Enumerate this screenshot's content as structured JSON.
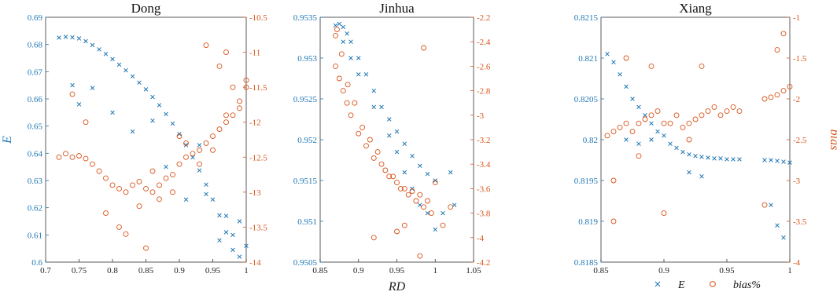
{
  "colors": {
    "E": "#1f77b4",
    "bias": "#d9541a"
  },
  "legend": {
    "placement": "bottom-right",
    "entries": [
      {
        "marker": "x",
        "label": "E",
        "color": "#1f77b4"
      },
      {
        "marker": "o",
        "label": "bias%",
        "color": "#d9541a"
      }
    ]
  },
  "chart_data": [
    {
      "type": "scatter",
      "title": "Dong",
      "xlabel": "",
      "ylabel": "E",
      "y2label": "",
      "xlim": [
        0.7,
        1.0
      ],
      "ylim": [
        0.6,
        0.69
      ],
      "y2lim": [
        -14,
        -10.5
      ],
      "xticks": [
        "0.7",
        "0.75",
        "0.8",
        "0.85",
        "0.9",
        "0.95",
        "1"
      ],
      "yticks": [
        "0.6",
        "0.61",
        "0.62",
        "0.63",
        "0.64",
        "0.65",
        "0.66",
        "0.67",
        "0.68",
        "0.69"
      ],
      "y2ticks": [
        "-14",
        "-13.5",
        "-13",
        "-12.5",
        "-12",
        "-11.5",
        "-11",
        "-10.5"
      ],
      "series": [
        {
          "name": "E",
          "marker": "x",
          "axis": "left",
          "x": [
            0.72,
            0.73,
            0.74,
            0.75,
            0.76,
            0.77,
            0.78,
            0.79,
            0.8,
            0.81,
            0.82,
            0.83,
            0.84,
            0.85,
            0.86,
            0.87,
            0.88,
            0.89,
            0.9,
            0.91,
            0.92,
            0.93,
            0.94,
            0.95,
            0.96,
            0.97,
            0.98,
            0.99,
            1.0,
            0.74,
            0.75,
            0.77,
            0.8,
            0.83,
            0.86,
            0.88,
            0.91,
            0.93,
            0.94,
            0.96,
            0.97,
            0.98,
            0.99
          ],
          "y": [
            0.6825,
            0.6828,
            0.6826,
            0.6822,
            0.6812,
            0.6798,
            0.6782,
            0.6765,
            0.6746,
            0.6726,
            0.6705,
            0.6683,
            0.666,
            0.6635,
            0.6607,
            0.6577,
            0.6544,
            0.6509,
            0.6471,
            0.643,
            0.6385,
            0.6337,
            0.6285,
            0.623,
            0.6172,
            0.611,
            0.6045,
            0.602,
            0.606,
            0.665,
            0.658,
            0.664,
            0.655,
            0.648,
            0.652,
            0.635,
            0.623,
            0.643,
            0.625,
            0.608,
            0.617,
            0.61,
            0.615
          ]
        },
        {
          "name": "bias%",
          "marker": "o",
          "axis": "right",
          "x": [
            0.72,
            0.73,
            0.74,
            0.75,
            0.76,
            0.77,
            0.78,
            0.79,
            0.8,
            0.81,
            0.82,
            0.83,
            0.84,
            0.85,
            0.86,
            0.87,
            0.88,
            0.89,
            0.9,
            0.91,
            0.92,
            0.93,
            0.94,
            0.95,
            0.96,
            0.97,
            0.98,
            0.99,
            1.0,
            0.74,
            0.76,
            0.79,
            0.81,
            0.84,
            0.85,
            0.87,
            0.89,
            0.91,
            0.93,
            0.95,
            0.96,
            0.97,
            0.98,
            0.99,
            1.0,
            0.82,
            0.86,
            0.9,
            0.94,
            0.97
          ],
          "y": [
            -12.5,
            -12.45,
            -12.5,
            -12.48,
            -12.52,
            -12.6,
            -12.7,
            -12.8,
            -12.9,
            -12.95,
            -13.0,
            -12.9,
            -12.85,
            -12.95,
            -13.0,
            -12.9,
            -12.8,
            -12.75,
            -12.6,
            -12.5,
            -12.45,
            -12.4,
            -12.3,
            -12.2,
            -12.1,
            -12.0,
            -11.9,
            -11.7,
            -11.5,
            -11.6,
            -12.0,
            -13.3,
            -13.5,
            -13.2,
            -13.8,
            -13.1,
            -13.0,
            -12.3,
            -12.6,
            -12.4,
            -11.2,
            -11.0,
            -11.5,
            -11.8,
            -11.4,
            -13.6,
            -12.7,
            -12.2,
            -10.9,
            -11.9
          ]
        }
      ]
    },
    {
      "type": "scatter",
      "title": "Jinhua",
      "xlabel": "RD",
      "ylabel": "",
      "y2label": "",
      "xlim": [
        0.85,
        1.05
      ],
      "ylim": [
        0.9505,
        0.9535
      ],
      "y2lim": [
        -4.2,
        -2.2
      ],
      "xticks": [
        "0.85",
        "0.9",
        "0.95",
        "1",
        "1.05"
      ],
      "yticks": [
        "0.9505",
        "0.951",
        "0.9515",
        "0.952",
        "0.9525",
        "0.953",
        "0.9535"
      ],
      "y2ticks": [
        "-4.2",
        "-4",
        "-3.8",
        "-3.6",
        "-3.4",
        "-3.2",
        "-3",
        "-2.8",
        "-2.6",
        "-2.4",
        "-2.2"
      ],
      "series": [
        {
          "name": "E",
          "marker": "x",
          "axis": "left",
          "x": [
            0.87,
            0.875,
            0.88,
            0.885,
            0.89,
            0.9,
            0.91,
            0.92,
            0.93,
            0.94,
            0.95,
            0.96,
            0.97,
            0.98,
            0.99,
            1.0,
            0.88,
            0.89,
            0.9,
            0.92,
            0.94,
            0.95,
            0.96,
            0.97,
            0.98,
            0.99,
            1.0,
            1.01,
            1.02,
            1.025
          ],
          "y": [
            0.9534,
            0.95342,
            0.95338,
            0.9533,
            0.9532,
            0.953,
            0.9528,
            0.9526,
            0.9524,
            0.95225,
            0.9521,
            0.95195,
            0.9518,
            0.95168,
            0.95158,
            0.9515,
            0.9532,
            0.953,
            0.9528,
            0.9524,
            0.95205,
            0.95185,
            0.9516,
            0.9514,
            0.9512,
            0.9511,
            0.9509,
            0.9511,
            0.9516,
            0.9512
          ]
        },
        {
          "name": "bias%",
          "marker": "o",
          "axis": "right",
          "x": [
            0.87,
            0.875,
            0.88,
            0.885,
            0.89,
            0.9,
            0.91,
            0.92,
            0.93,
            0.94,
            0.95,
            0.96,
            0.97,
            0.98,
            0.99,
            1.0,
            0.872,
            0.878,
            0.886,
            0.895,
            0.905,
            0.915,
            0.925,
            0.935,
            0.945,
            0.955,
            0.965,
            0.975,
            0.985,
            0.995,
            0.92,
            0.95,
            0.96,
            0.98,
            0.985,
            1.01,
            1.02,
            0.87
          ],
          "y": [
            -2.6,
            -2.7,
            -2.8,
            -2.9,
            -3.0,
            -3.15,
            -3.25,
            -3.35,
            -3.4,
            -3.5,
            -3.55,
            -3.6,
            -3.62,
            -3.65,
            -3.7,
            -3.55,
            -2.3,
            -2.5,
            -2.75,
            -2.9,
            -3.1,
            -3.2,
            -3.3,
            -3.45,
            -3.5,
            -3.6,
            -3.65,
            -3.7,
            -3.75,
            -3.8,
            -4.0,
            -3.95,
            -3.9,
            -4.15,
            -2.45,
            -3.9,
            -3.75,
            -2.35
          ]
        }
      ]
    },
    {
      "type": "scatter",
      "title": "Xiang",
      "xlabel": "",
      "ylabel": "",
      "y2label": "bias",
      "xlim": [
        0.85,
        1.0
      ],
      "ylim": [
        0.8185,
        0.8215
      ],
      "y2lim": [
        -4,
        -1
      ],
      "xticks": [
        "0.85",
        "0.9",
        "0.95",
        "1"
      ],
      "yticks": [
        "0.8185",
        "0.819",
        "0.8195",
        "0.82",
        "0.8205",
        "0.821",
        "0.8215"
      ],
      "y2ticks": [
        "-4",
        "-3.5",
        "-3",
        "-2.5",
        "-2",
        "-1.5",
        "-1"
      ],
      "series": [
        {
          "name": "E",
          "marker": "x",
          "axis": "left",
          "x": [
            0.855,
            0.86,
            0.865,
            0.87,
            0.875,
            0.88,
            0.885,
            0.89,
            0.895,
            0.9,
            0.905,
            0.91,
            0.915,
            0.92,
            0.925,
            0.93,
            0.935,
            0.94,
            0.945,
            0.95,
            0.955,
            0.96,
            0.98,
            0.985,
            0.99,
            0.995,
            1.0,
            0.87,
            0.88,
            0.89,
            0.92,
            0.93,
            0.99,
            0.995,
            0.985
          ],
          "y": [
            0.82105,
            0.82095,
            0.8208,
            0.82065,
            0.8205,
            0.8204,
            0.8203,
            0.8202,
            0.8201,
            0.82005,
            0.81995,
            0.8199,
            0.81985,
            0.81982,
            0.8198,
            0.81979,
            0.81978,
            0.81977,
            0.81977,
            0.81976,
            0.81976,
            0.81976,
            0.81975,
            0.81975,
            0.81974,
            0.81973,
            0.81972,
            0.82,
            0.81995,
            0.82,
            0.8196,
            0.81955,
            0.81895,
            0.8188,
            0.8192
          ]
        },
        {
          "name": "bias%",
          "marker": "o",
          "axis": "right",
          "x": [
            0.855,
            0.86,
            0.865,
            0.87,
            0.875,
            0.88,
            0.885,
            0.89,
            0.895,
            0.9,
            0.905,
            0.91,
            0.915,
            0.92,
            0.925,
            0.93,
            0.935,
            0.94,
            0.945,
            0.95,
            0.955,
            0.96,
            0.98,
            0.985,
            0.99,
            0.995,
            1.0,
            0.86,
            0.87,
            0.88,
            0.89,
            0.9,
            0.92,
            0.93,
            0.86,
            0.995,
            0.99,
            0.98
          ],
          "y": [
            -2.45,
            -2.4,
            -2.35,
            -2.3,
            -2.4,
            -2.3,
            -2.25,
            -2.2,
            -2.15,
            -2.3,
            -2.3,
            -2.2,
            -2.35,
            -2.3,
            -2.25,
            -2.2,
            -2.15,
            -2.1,
            -2.2,
            -2.15,
            -2.1,
            -2.15,
            -2.0,
            -1.98,
            -1.95,
            -1.9,
            -1.85,
            -3.0,
            -1.5,
            -2.7,
            -1.6,
            -3.4,
            -2.5,
            -1.6,
            -3.5,
            -1.2,
            -1.4,
            -3.3
          ]
        }
      ]
    }
  ]
}
